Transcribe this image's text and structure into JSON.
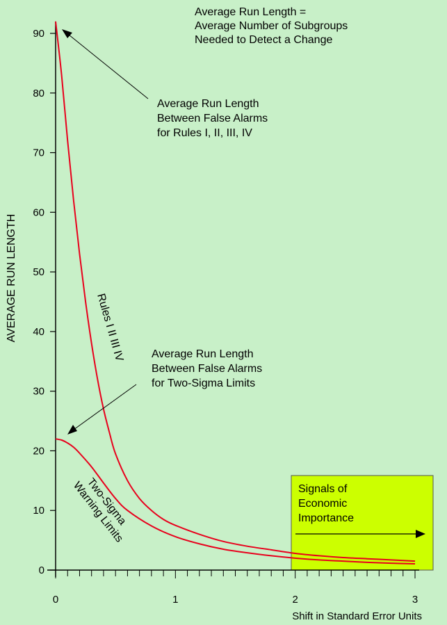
{
  "colors": {
    "background": "#c8f0c8",
    "curve": "#e8001c",
    "axis": "#000000",
    "signal_box": "#ccff00"
  },
  "chart_data": {
    "type": "line",
    "xlabel": "Shift in Standard Error Units",
    "ylabel": "AVERAGE  RUN  LENGTH",
    "xlim": [
      0,
      3
    ],
    "ylim": [
      0,
      92
    ],
    "x_ticks": [
      "0",
      "1",
      "2",
      "3"
    ],
    "y_ticks": [
      "0",
      "10",
      "20",
      "30",
      "40",
      "50",
      "60",
      "70",
      "80",
      "90"
    ],
    "x_minor_step": 0.1,
    "grid": false,
    "series": [
      {
        "name": "Rules I II III IV",
        "x": [
          0,
          0.05,
          0.1,
          0.15,
          0.2,
          0.25,
          0.3,
          0.35,
          0.4,
          0.45,
          0.5,
          0.6,
          0.7,
          0.8,
          0.9,
          1.0,
          1.2,
          1.4,
          1.6,
          1.8,
          2.0,
          2.2,
          2.4,
          2.6,
          2.8,
          3.0
        ],
        "values": [
          92,
          83,
          72,
          62,
          53,
          45,
          38,
          32,
          27,
          23,
          19.5,
          15,
          12,
          10,
          8.5,
          7.5,
          6,
          4.8,
          4,
          3.4,
          2.8,
          2.4,
          2.1,
          1.9,
          1.7,
          1.5
        ]
      },
      {
        "name": "Two-Sigma Warning Limits",
        "x": [
          0,
          0.05,
          0.1,
          0.15,
          0.2,
          0.3,
          0.4,
          0.5,
          0.6,
          0.8,
          1.0,
          1.2,
          1.4,
          1.6,
          1.8,
          2.0,
          2.2,
          2.4,
          2.6,
          2.8,
          3.0
        ],
        "values": [
          22,
          21.8,
          21.3,
          20.6,
          19.6,
          17.3,
          14.6,
          12,
          10,
          7.4,
          5.6,
          4.4,
          3.5,
          2.9,
          2.4,
          2,
          1.7,
          1.5,
          1.3,
          1.15,
          1.05
        ]
      }
    ],
    "annotations": {
      "definition": [
        "Average Run Length =",
        "Average Number of Subgroups",
        "Needed to Detect a Change"
      ],
      "rules_false_alarms": [
        "Average Run Length",
        "Between False Alarms",
        "for Rules I, II, III, IV"
      ],
      "two_sigma_false_alarms": [
        "Average Run Length",
        "Between False Alarms",
        "for Two-Sigma Limits"
      ],
      "rules_curve_label": "Rules I II III IV",
      "two_sigma_curve_label": [
        "Two-Sigma",
        "Warning Limits"
      ],
      "signal_box": [
        "Signals of",
        "Economic",
        "Importance"
      ]
    }
  }
}
